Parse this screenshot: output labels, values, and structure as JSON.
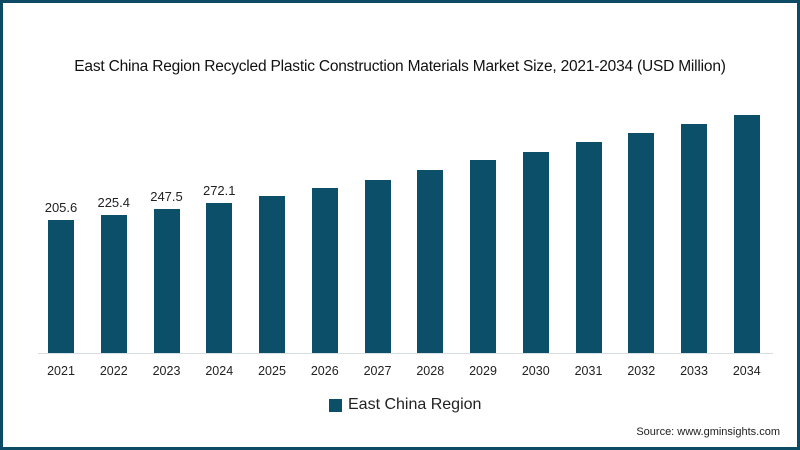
{
  "chart_data": {
    "type": "bar",
    "title": "East China Region Recycled Plastic Construction Materials Market Size, 2021-2034 (USD Million)",
    "xlabel": "",
    "ylabel": "",
    "categories": [
      "2021",
      "2022",
      "2023",
      "2024",
      "2025",
      "2026",
      "2027",
      "2028",
      "2029",
      "2030",
      "2031",
      "2032",
      "2033",
      "2034"
    ],
    "series": [
      {
        "name": "East China Region",
        "color": "#0b4f68",
        "values": [
          205.6,
          225.4,
          247.5,
          272.1,
          299.5,
          330.8,
          364.0,
          403.0,
          440.0,
          472.0,
          509.0,
          546.0,
          580.0,
          616.0
        ]
      }
    ],
    "data_labels": [
      "205.6",
      "225.4",
      "247.5",
      "272.1",
      "",
      "",
      "",
      "",
      "",
      "",
      "",
      "",
      "",
      ""
    ],
    "grid": false,
    "y_axis_visible": false,
    "legend_position": "bottom",
    "source": "Source: www.gminsights.com"
  },
  "colors": {
    "bar": "#0b4f68",
    "frame": "#0d4a63"
  }
}
